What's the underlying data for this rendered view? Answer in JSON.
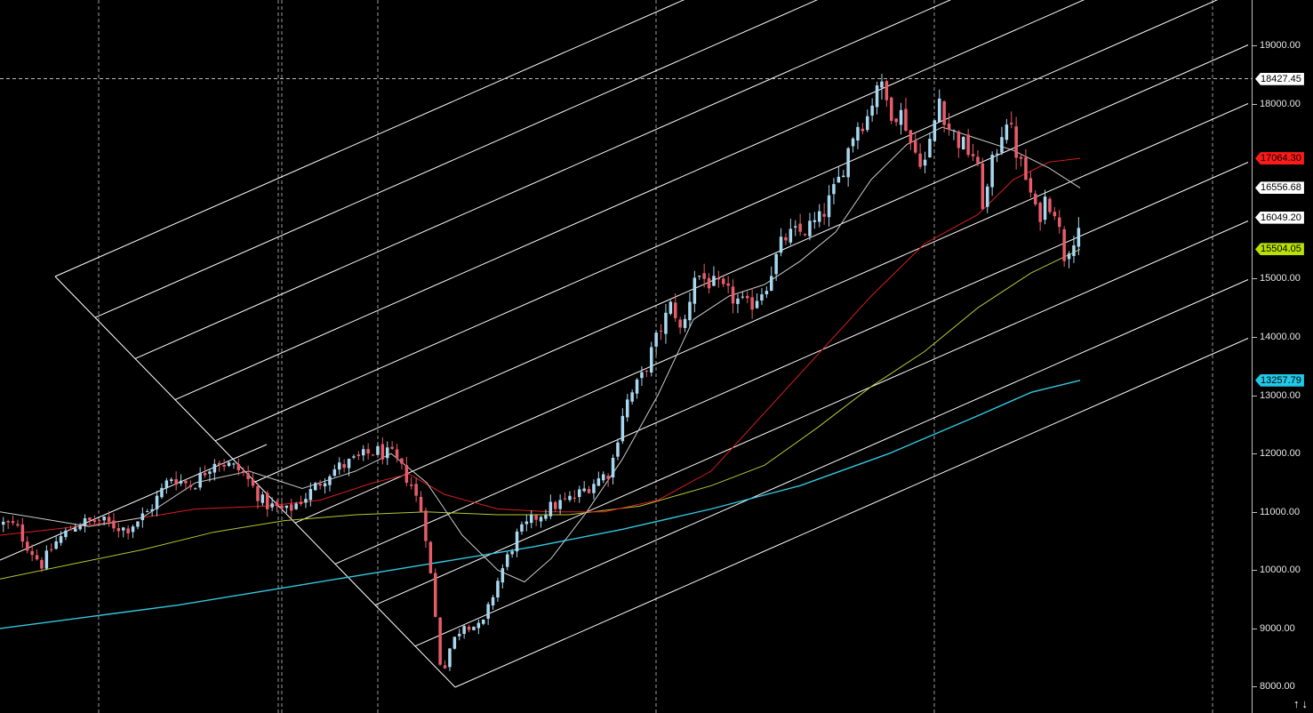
{
  "chart_data": {
    "type": "candlestick",
    "y_ticks": [
      8000,
      9000,
      10000,
      11000,
      12000,
      13000,
      14000,
      15000,
      18000,
      19000
    ],
    "y_tick_labels": [
      "8000.00",
      "9000.00",
      "10000.00",
      "11000.00",
      "12000.00",
      "13000.00",
      "14000.00",
      "15000.00",
      "18000.00",
      "19000.00"
    ],
    "ylim": [
      7550,
      19780
    ],
    "crosshair_price": 18427.45,
    "price_tags": [
      {
        "label": "18427.45",
        "value": 18427.45,
        "bg": "#ffffff",
        "fg": "#000000"
      },
      {
        "label": "17064.30",
        "value": 17064.3,
        "bg": "#ff1a1a",
        "fg": "#000000"
      },
      {
        "label": "16556.68",
        "value": 16556.68,
        "bg": "#ffffff",
        "fg": "#000000"
      },
      {
        "label": "16049.20",
        "value": 16049.2,
        "bg": "#ffffff",
        "fg": "#000000"
      },
      {
        "label": "15504.05",
        "value": 15504.05,
        "bg": "#b8e000",
        "fg": "#000000"
      },
      {
        "label": "13257.79",
        "value": 13257.79,
        "bg": "#22c8e8",
        "fg": "#000000"
      }
    ],
    "grid": true,
    "colors": {
      "up": "#a8d8f0",
      "down": "#e85c6a",
      "ma_fast": "#c8c8c8",
      "ma_mid": "#d81e1e",
      "ma_slow": "#b4c832",
      "ma_long": "#32c8e0",
      "channel": "#ffffff"
    },
    "anchors": [
      [
        0,
        10800
      ],
      [
        16,
        10750
      ],
      [
        30,
        10400
      ],
      [
        45,
        10100
      ],
      [
        62,
        10500
      ],
      [
        85,
        10800
      ],
      [
        110,
        10850
      ],
      [
        140,
        10700
      ],
      [
        165,
        11000
      ],
      [
        190,
        11600
      ],
      [
        215,
        11450
      ],
      [
        240,
        11900
      ],
      [
        270,
        11700
      ],
      [
        295,
        11150
      ],
      [
        320,
        11000
      ],
      [
        345,
        11300
      ],
      [
        370,
        11700
      ],
      [
        400,
        11900
      ],
      [
        420,
        12050
      ],
      [
        440,
        11950
      ],
      [
        460,
        11500
      ],
      [
        475,
        10900
      ],
      [
        485,
        9600
      ],
      [
        495,
        8200
      ],
      [
        505,
        8700
      ],
      [
        520,
        9100
      ],
      [
        540,
        9000
      ],
      [
        560,
        9900
      ],
      [
        580,
        10600
      ],
      [
        600,
        10900
      ],
      [
        620,
        11100
      ],
      [
        645,
        11250
      ],
      [
        665,
        11500
      ],
      [
        685,
        11700
      ],
      [
        700,
        12800
      ],
      [
        720,
        13300
      ],
      [
        740,
        14100
      ],
      [
        755,
        14600
      ],
      [
        765,
        14000
      ],
      [
        780,
        15100
      ],
      [
        800,
        14900
      ],
      [
        820,
        14700
      ],
      [
        840,
        14500
      ],
      [
        860,
        14900
      ],
      [
        880,
        15700
      ],
      [
        900,
        15800
      ],
      [
        920,
        16000
      ],
      [
        940,
        16600
      ],
      [
        960,
        17600
      ],
      [
        975,
        17800
      ],
      [
        985,
        18400
      ],
      [
        1000,
        17900
      ],
      [
        1015,
        17800
      ],
      [
        1025,
        17200
      ],
      [
        1040,
        17000
      ],
      [
        1055,
        18100
      ],
      [
        1065,
        17600
      ],
      [
        1080,
        17300
      ],
      [
        1095,
        17100
      ],
      [
        1105,
        16200
      ],
      [
        1115,
        17000
      ],
      [
        1130,
        17800
      ],
      [
        1145,
        17000
      ],
      [
        1155,
        16600
      ],
      [
        1165,
        16000
      ],
      [
        1175,
        16400
      ],
      [
        1185,
        16200
      ],
      [
        1195,
        15400
      ],
      [
        1205,
        15700
      ],
      [
        1215,
        16000
      ]
    ],
    "ma_fast": [
      [
        0,
        11000
      ],
      [
        40,
        10900
      ],
      [
        100,
        10750
      ],
      [
        160,
        10900
      ],
      [
        220,
        11500
      ],
      [
        280,
        11700
      ],
      [
        340,
        11400
      ],
      [
        400,
        11700
      ],
      [
        440,
        12000
      ],
      [
        480,
        11500
      ],
      [
        520,
        10600
      ],
      [
        560,
        10000
      ],
      [
        590,
        9800
      ],
      [
        620,
        10200
      ],
      [
        660,
        11000
      ],
      [
        700,
        11900
      ],
      [
        740,
        13000
      ],
      [
        780,
        14300
      ],
      [
        820,
        14700
      ],
      [
        860,
        14900
      ],
      [
        900,
        15300
      ],
      [
        940,
        15800
      ],
      [
        980,
        16700
      ],
      [
        1020,
        17300
      ],
      [
        1060,
        17600
      ],
      [
        1100,
        17400
      ],
      [
        1140,
        17200
      ],
      [
        1180,
        16900
      ],
      [
        1215,
        16556
      ]
    ],
    "ma_mid": [
      [
        0,
        10600
      ],
      [
        60,
        10700
      ],
      [
        140,
        10850
      ],
      [
        220,
        11050
      ],
      [
        300,
        11100
      ],
      [
        360,
        11200
      ],
      [
        420,
        11500
      ],
      [
        460,
        11650
      ],
      [
        500,
        11300
      ],
      [
        560,
        11050
      ],
      [
        620,
        11000
      ],
      [
        680,
        11000
      ],
      [
        740,
        11200
      ],
      [
        800,
        11700
      ],
      [
        860,
        12700
      ],
      [
        920,
        13700
      ],
      [
        980,
        14700
      ],
      [
        1040,
        15600
      ],
      [
        1100,
        16100
      ],
      [
        1140,
        16700
      ],
      [
        1180,
        17000
      ],
      [
        1215,
        17064
      ]
    ],
    "ma_slow": [
      [
        0,
        9850
      ],
      [
        80,
        10100
      ],
      [
        160,
        10350
      ],
      [
        240,
        10650
      ],
      [
        320,
        10850
      ],
      [
        400,
        10950
      ],
      [
        480,
        11000
      ],
      [
        560,
        10950
      ],
      [
        640,
        10950
      ],
      [
        720,
        11100
      ],
      [
        800,
        11450
      ],
      [
        860,
        11800
      ],
      [
        920,
        12450
      ],
      [
        980,
        13150
      ],
      [
        1040,
        13750
      ],
      [
        1100,
        14500
      ],
      [
        1160,
        15100
      ],
      [
        1215,
        15504
      ]
    ],
    "ma_long": [
      [
        0,
        9000
      ],
      [
        100,
        9200
      ],
      [
        200,
        9400
      ],
      [
        300,
        9650
      ],
      [
        400,
        9900
      ],
      [
        500,
        10150
      ],
      [
        600,
        10400
      ],
      [
        700,
        10700
      ],
      [
        800,
        11050
      ],
      [
        900,
        11450
      ],
      [
        1000,
        12000
      ],
      [
        1100,
        12650
      ],
      [
        1160,
        13050
      ],
      [
        1215,
        13257
      ]
    ]
  },
  "controls": {
    "scroll_up_icon": "↑",
    "scroll_down_icon": "↓"
  }
}
